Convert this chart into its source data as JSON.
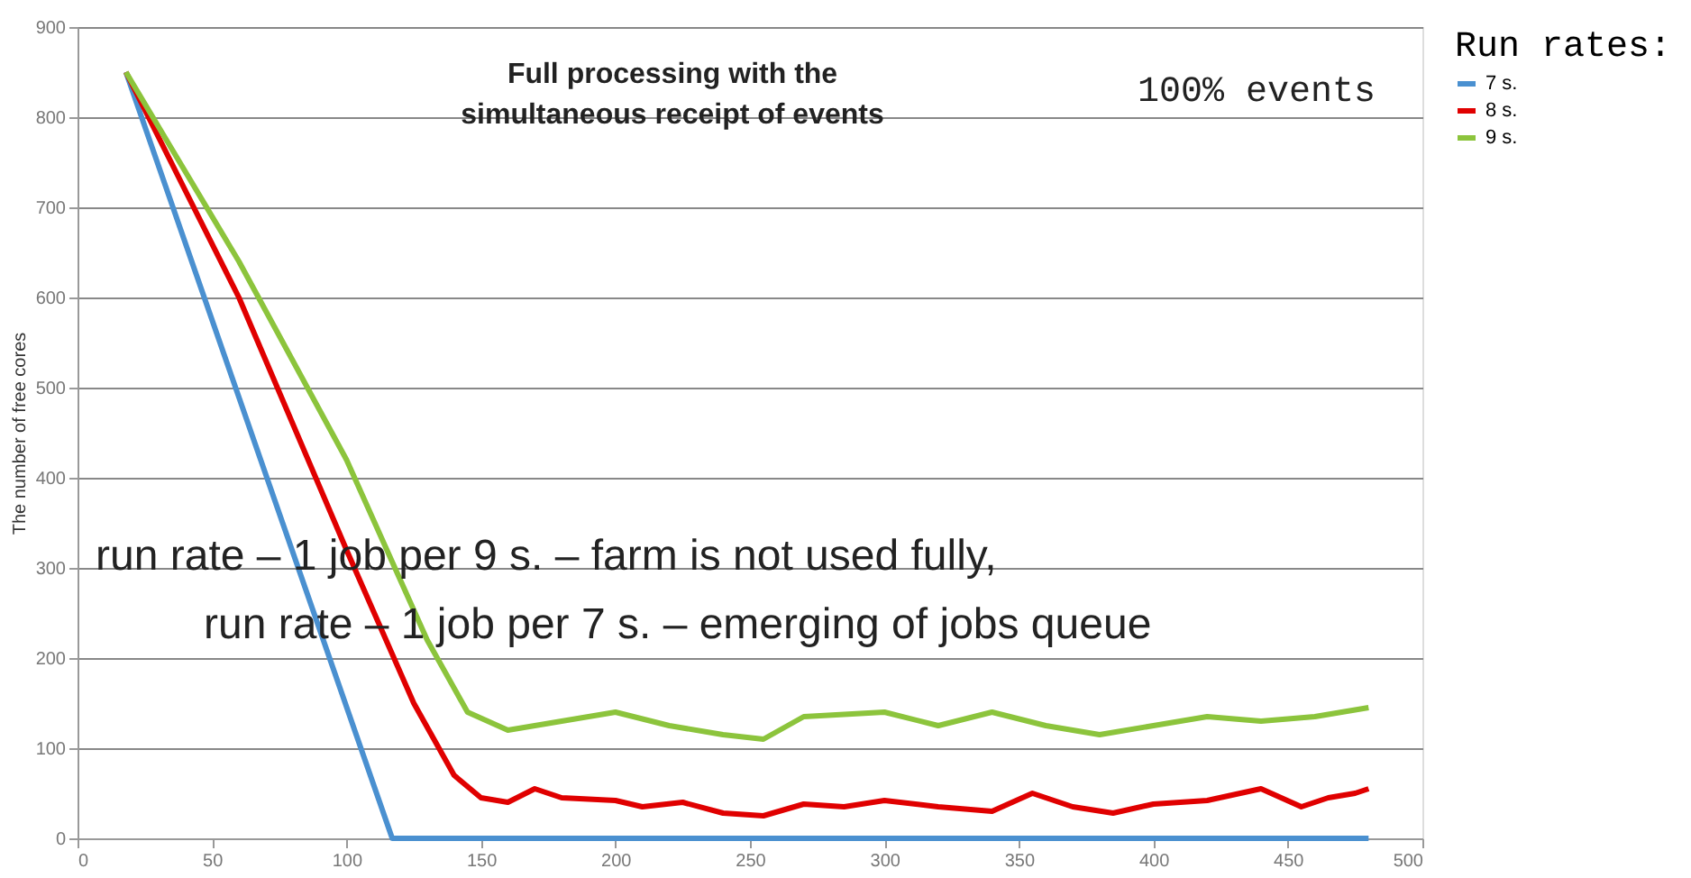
{
  "chart_data": {
    "type": "line",
    "ylabel": "The number of free cores",
    "legend_title": "Run rates:",
    "annotations": [
      "Full processing with the\nsimultaneous receipt of events",
      "100% events",
      "run rate – 1 job per 9 s. – farm is not used fully,",
      "run rate – 1 job per 7 s. – emerging of jobs queue"
    ],
    "series": [
      {
        "name": "7 s.",
        "color": "#4a90d0",
        "x": [
          18,
          117,
          480
        ],
        "values": [
          850,
          0,
          0
        ]
      },
      {
        "name": "8 s.",
        "color": "#e00000",
        "x": [
          18,
          60,
          100,
          125,
          140,
          150,
          160,
          170,
          180,
          200,
          210,
          225,
          240,
          255,
          270,
          285,
          300,
          320,
          340,
          355,
          370,
          385,
          400,
          420,
          440,
          455,
          465,
          475,
          480
        ],
        "values": [
          850,
          600,
          320,
          150,
          70,
          45,
          40,
          55,
          45,
          42,
          35,
          40,
          28,
          25,
          38,
          35,
          42,
          35,
          30,
          50,
          35,
          28,
          38,
          42,
          55,
          35,
          45,
          50,
          55
        ]
      },
      {
        "name": "9 s.",
        "color": "#8cc43c",
        "x": [
          18,
          60,
          100,
          130,
          145,
          160,
          180,
          200,
          220,
          240,
          255,
          270,
          300,
          320,
          340,
          360,
          380,
          400,
          420,
          440,
          460,
          480
        ],
        "values": [
          850,
          640,
          420,
          220,
          140,
          120,
          130,
          140,
          125,
          115,
          110,
          135,
          140,
          125,
          140,
          125,
          115,
          125,
          135,
          130,
          135,
          145
        ]
      }
    ],
    "xlim": [
      0,
      500
    ],
    "xticks": [
      0,
      50,
      100,
      150,
      200,
      250,
      300,
      350,
      400,
      450,
      500
    ],
    "ylim": [
      0,
      900
    ],
    "yticks": [
      0,
      100,
      200,
      300,
      400,
      500,
      600,
      700,
      800,
      900
    ],
    "grid": "y",
    "legend": "right",
    "marker": "none",
    "line_style": "solid"
  }
}
